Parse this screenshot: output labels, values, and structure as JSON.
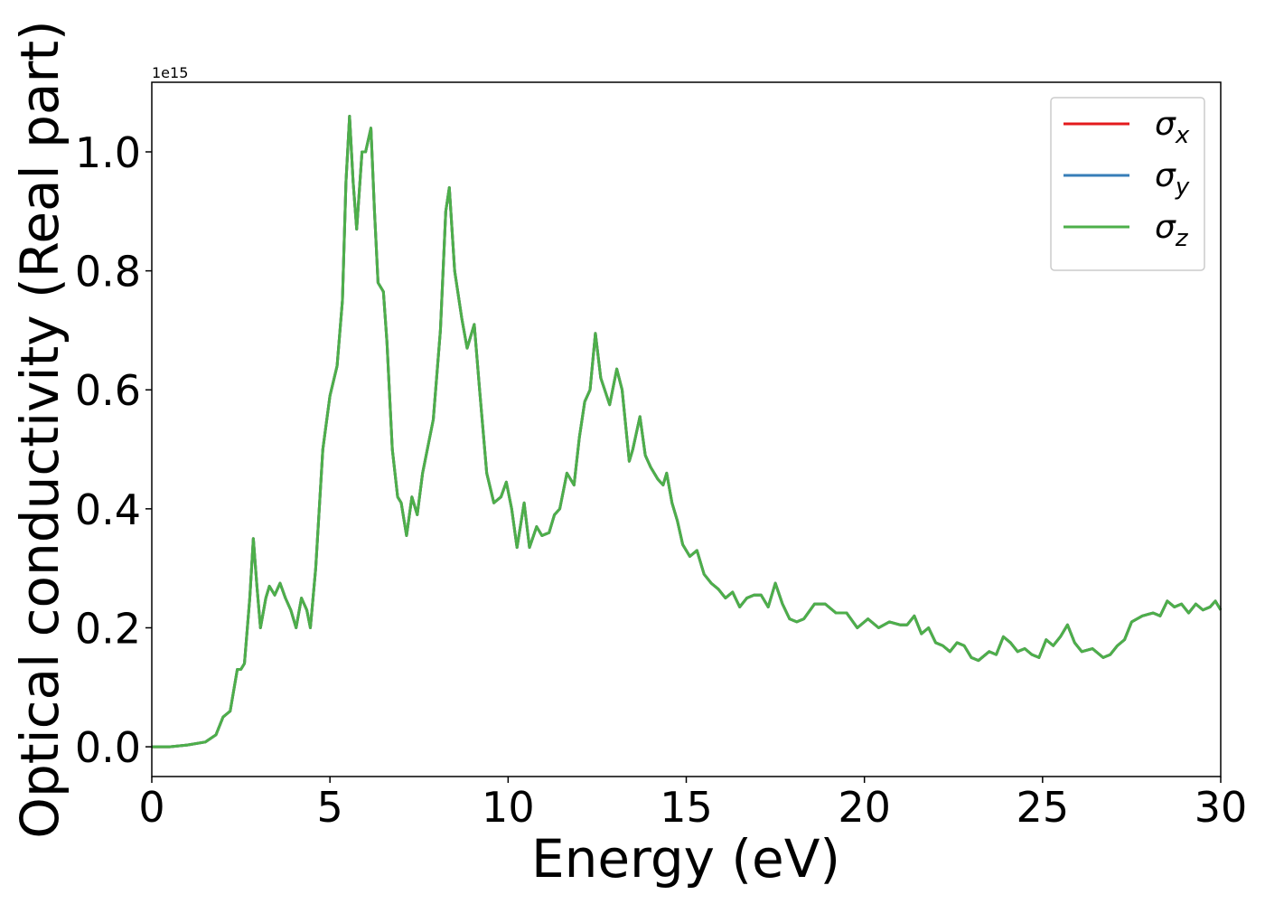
{
  "chart_data": {
    "type": "line",
    "xlabel": "Energy (eV)",
    "ylabel": "Optical conductivity (Real part)",
    "offset_text": "1e15",
    "xlim": [
      0,
      30
    ],
    "xticks": [
      0,
      5,
      10,
      15,
      20,
      25,
      30
    ],
    "ylim": [
      -0.05,
      1.117
    ],
    "yticks": [
      {
        "value": 0,
        "label": "0.0"
      },
      0.2,
      0.4,
      0.6,
      0.8,
      {
        "value": 1,
        "label": "1.0"
      }
    ],
    "grid": false,
    "legend": "upper right",
    "x": [
      0,
      0.5,
      1.0,
      1.5,
      1.8,
      2.0,
      2.1,
      2.2,
      2.4,
      2.5,
      2.6,
      2.75,
      2.85,
      2.95,
      3.05,
      3.2,
      3.3,
      3.45,
      3.6,
      3.75,
      3.9,
      4.05,
      4.2,
      4.35,
      4.45,
      4.6,
      4.8,
      5.0,
      5.2,
      5.35,
      5.45,
      5.55,
      5.65,
      5.75,
      5.9,
      6.0,
      6.15,
      6.25,
      6.35,
      6.5,
      6.6,
      6.75,
      6.9,
      7.0,
      7.15,
      7.3,
      7.45,
      7.6,
      7.9,
      8.1,
      8.25,
      8.35,
      8.5,
      8.7,
      8.85,
      9.05,
      9.2,
      9.4,
      9.6,
      9.8,
      9.95,
      10.1,
      10.25,
      10.45,
      10.6,
      10.8,
      10.95,
      11.15,
      11.3,
      11.45,
      11.65,
      11.85,
      12.0,
      12.15,
      12.3,
      12.45,
      12.6,
      12.85,
      13.05,
      13.2,
      13.4,
      13.5,
      13.7,
      13.85,
      14.0,
      14.2,
      14.35,
      14.45,
      14.6,
      14.75,
      14.9,
      15.1,
      15.3,
      15.5,
      15.7,
      15.9,
      16.1,
      16.3,
      16.5,
      16.7,
      16.9,
      17.1,
      17.3,
      17.5,
      17.7,
      17.9,
      18.1,
      18.3,
      18.6,
      18.9,
      19.2,
      19.5,
      19.8,
      20.1,
      20.4,
      20.7,
      21.0,
      21.2,
      21.4,
      21.6,
      21.8,
      22.0,
      22.2,
      22.4,
      22.6,
      22.8,
      23.0,
      23.2,
      23.5,
      23.7,
      23.9,
      24.1,
      24.3,
      24.5,
      24.7,
      24.9,
      25.1,
      25.3,
      25.5,
      25.7,
      25.9,
      26.1,
      26.4,
      26.7,
      26.9,
      27.1,
      27.3,
      27.5,
      27.8,
      28.1,
      28.3,
      28.5,
      28.7,
      28.9,
      29.1,
      29.3,
      29.5,
      29.7,
      29.85,
      30.0
    ],
    "series": [
      {
        "name": "σx",
        "color": "#e41a1c",
        "values": [
          0,
          0,
          0.003,
          0.008,
          0.02,
          0.05,
          0.055,
          0.06,
          0.13,
          0.13,
          0.14,
          0.25,
          0.35,
          0.27,
          0.2,
          0.25,
          0.27,
          0.255,
          0.275,
          0.25,
          0.23,
          0.2,
          0.25,
          0.23,
          0.2,
          0.3,
          0.5,
          0.59,
          0.64,
          0.75,
          0.95,
          1.06,
          0.95,
          0.87,
          1.0,
          1.0,
          1.04,
          0.9,
          0.78,
          0.765,
          0.68,
          0.5,
          0.42,
          0.41,
          0.355,
          0.42,
          0.39,
          0.46,
          0.55,
          0.7,
          0.9,
          0.94,
          0.8,
          0.72,
          0.67,
          0.71,
          0.6,
          0.46,
          0.41,
          0.42,
          0.445,
          0.4,
          0.335,
          0.41,
          0.335,
          0.37,
          0.355,
          0.36,
          0.39,
          0.4,
          0.46,
          0.44,
          0.52,
          0.58,
          0.6,
          0.695,
          0.62,
          0.575,
          0.635,
          0.6,
          0.48,
          0.5,
          0.555,
          0.49,
          0.47,
          0.45,
          0.44,
          0.46,
          0.41,
          0.38,
          0.34,
          0.32,
          0.33,
          0.29,
          0.275,
          0.265,
          0.25,
          0.26,
          0.235,
          0.25,
          0.255,
          0.255,
          0.235,
          0.275,
          0.24,
          0.215,
          0.21,
          0.215,
          0.24,
          0.24,
          0.225,
          0.225,
          0.2,
          0.215,
          0.2,
          0.21,
          0.205,
          0.205,
          0.22,
          0.19,
          0.2,
          0.175,
          0.17,
          0.16,
          0.175,
          0.17,
          0.15,
          0.145,
          0.16,
          0.155,
          0.185,
          0.175,
          0.16,
          0.165,
          0.155,
          0.15,
          0.18,
          0.17,
          0.185,
          0.205,
          0.175,
          0.16,
          0.165,
          0.15,
          0.155,
          0.17,
          0.18,
          0.21,
          0.22,
          0.225,
          0.22,
          0.245,
          0.235,
          0.24,
          0.225,
          0.24,
          0.23,
          0.235,
          0.245,
          0.23
        ]
      },
      {
        "name": "σy",
        "color": "#377eb8",
        "values": [
          0,
          0,
          0.003,
          0.008,
          0.02,
          0.05,
          0.055,
          0.06,
          0.13,
          0.13,
          0.14,
          0.25,
          0.35,
          0.27,
          0.2,
          0.25,
          0.27,
          0.255,
          0.275,
          0.25,
          0.23,
          0.2,
          0.25,
          0.23,
          0.2,
          0.3,
          0.5,
          0.59,
          0.64,
          0.75,
          0.95,
          1.06,
          0.95,
          0.87,
          1.0,
          1.0,
          1.04,
          0.9,
          0.78,
          0.765,
          0.68,
          0.5,
          0.42,
          0.41,
          0.355,
          0.42,
          0.39,
          0.46,
          0.55,
          0.7,
          0.9,
          0.94,
          0.8,
          0.72,
          0.67,
          0.71,
          0.6,
          0.46,
          0.41,
          0.42,
          0.445,
          0.4,
          0.335,
          0.41,
          0.335,
          0.37,
          0.355,
          0.36,
          0.39,
          0.4,
          0.46,
          0.44,
          0.52,
          0.58,
          0.6,
          0.695,
          0.62,
          0.575,
          0.635,
          0.6,
          0.48,
          0.5,
          0.555,
          0.49,
          0.47,
          0.45,
          0.44,
          0.46,
          0.41,
          0.38,
          0.34,
          0.32,
          0.33,
          0.29,
          0.275,
          0.265,
          0.25,
          0.26,
          0.235,
          0.25,
          0.255,
          0.255,
          0.235,
          0.275,
          0.24,
          0.215,
          0.21,
          0.215,
          0.24,
          0.24,
          0.225,
          0.225,
          0.2,
          0.215,
          0.2,
          0.21,
          0.205,
          0.205,
          0.22,
          0.19,
          0.2,
          0.175,
          0.17,
          0.16,
          0.175,
          0.17,
          0.15,
          0.145,
          0.16,
          0.155,
          0.185,
          0.175,
          0.16,
          0.165,
          0.155,
          0.15,
          0.18,
          0.17,
          0.185,
          0.205,
          0.175,
          0.16,
          0.165,
          0.15,
          0.155,
          0.17,
          0.18,
          0.21,
          0.22,
          0.225,
          0.22,
          0.245,
          0.235,
          0.24,
          0.225,
          0.24,
          0.23,
          0.235,
          0.245,
          0.23
        ]
      },
      {
        "name": "σz",
        "color": "#4daf4a",
        "values": [
          0,
          0,
          0.003,
          0.008,
          0.02,
          0.05,
          0.055,
          0.06,
          0.13,
          0.13,
          0.14,
          0.25,
          0.35,
          0.27,
          0.2,
          0.25,
          0.27,
          0.255,
          0.275,
          0.25,
          0.23,
          0.2,
          0.25,
          0.23,
          0.2,
          0.3,
          0.5,
          0.59,
          0.64,
          0.75,
          0.95,
          1.06,
          0.95,
          0.87,
          1.0,
          1.0,
          1.04,
          0.9,
          0.78,
          0.765,
          0.68,
          0.5,
          0.42,
          0.41,
          0.355,
          0.42,
          0.39,
          0.46,
          0.55,
          0.7,
          0.9,
          0.94,
          0.8,
          0.72,
          0.67,
          0.71,
          0.6,
          0.46,
          0.41,
          0.42,
          0.445,
          0.4,
          0.335,
          0.41,
          0.335,
          0.37,
          0.355,
          0.36,
          0.39,
          0.4,
          0.46,
          0.44,
          0.52,
          0.58,
          0.6,
          0.695,
          0.62,
          0.575,
          0.635,
          0.6,
          0.48,
          0.5,
          0.555,
          0.49,
          0.47,
          0.45,
          0.44,
          0.46,
          0.41,
          0.38,
          0.34,
          0.32,
          0.33,
          0.29,
          0.275,
          0.265,
          0.25,
          0.26,
          0.235,
          0.25,
          0.255,
          0.255,
          0.235,
          0.275,
          0.24,
          0.215,
          0.21,
          0.215,
          0.24,
          0.24,
          0.225,
          0.225,
          0.2,
          0.215,
          0.2,
          0.21,
          0.205,
          0.205,
          0.22,
          0.19,
          0.2,
          0.175,
          0.17,
          0.16,
          0.175,
          0.17,
          0.15,
          0.145,
          0.16,
          0.155,
          0.185,
          0.175,
          0.16,
          0.165,
          0.155,
          0.15,
          0.18,
          0.17,
          0.185,
          0.205,
          0.175,
          0.16,
          0.165,
          0.15,
          0.155,
          0.17,
          0.18,
          0.21,
          0.22,
          0.225,
          0.22,
          0.245,
          0.235,
          0.24,
          0.225,
          0.24,
          0.23,
          0.235,
          0.245,
          0.23
        ]
      }
    ]
  }
}
